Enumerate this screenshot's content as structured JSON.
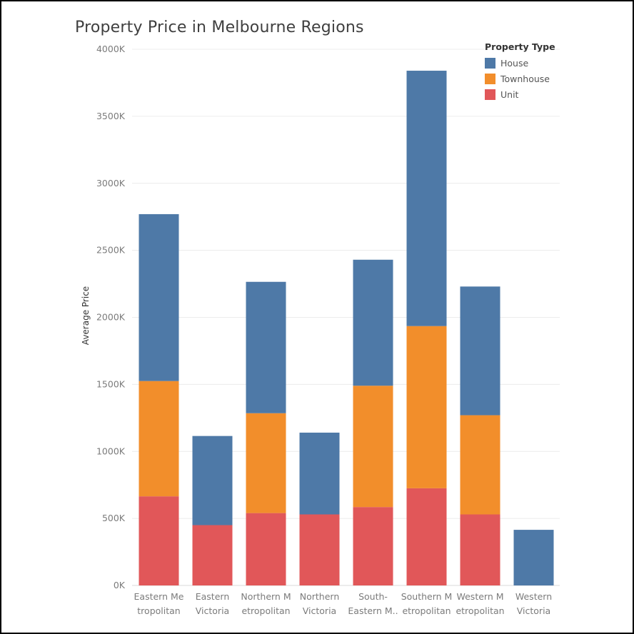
{
  "chart_data": {
    "type": "bar",
    "stacked": true,
    "title": "Property Price in Melbourne Regions",
    "ylabel": "Average Price",
    "ylim": [
      0,
      4000000
    ],
    "yticks": [
      {
        "value": 0,
        "label": "0K"
      },
      {
        "value": 500000,
        "label": "500K"
      },
      {
        "value": 1000000,
        "label": "1000K"
      },
      {
        "value": 1500000,
        "label": "1500K"
      },
      {
        "value": 2000000,
        "label": "2000K"
      },
      {
        "value": 2500000,
        "label": "2500K"
      },
      {
        "value": 3000000,
        "label": "3000K"
      },
      {
        "value": 3500000,
        "label": "3500K"
      },
      {
        "value": 4000000,
        "label": "4000K"
      }
    ],
    "categories": [
      "Eastern Metropolitan",
      "Eastern Victoria",
      "Northern Metropolitan",
      "Northern Victoria",
      "South-Eastern Metropolitan",
      "Southern Metropolitan",
      "Western Metropolitan",
      "Western Victoria"
    ],
    "category_labels": [
      [
        "Eastern Me",
        "tropolitan"
      ],
      [
        "Eastern",
        "Victoria"
      ],
      [
        "Northern M",
        "etropolitan"
      ],
      [
        "Northern",
        "Victoria"
      ],
      [
        "South-",
        "Eastern M.."
      ],
      [
        "Southern M",
        "etropolitan"
      ],
      [
        "Western M",
        "etropolitan"
      ],
      [
        "Western",
        "Victoria"
      ]
    ],
    "series": [
      {
        "name": "Unit",
        "color": "#e15759",
        "values": [
          665000,
          450000,
          540000,
          530000,
          585000,
          725000,
          530000,
          0
        ]
      },
      {
        "name": "Townhouse",
        "color": "#f28e2b",
        "values": [
          860000,
          0,
          745000,
          0,
          905000,
          1210000,
          740000,
          0
        ]
      },
      {
        "name": "House",
        "color": "#4e79a7",
        "values": [
          1245000,
          665000,
          980000,
          610000,
          940000,
          1905000,
          960000,
          415000
        ]
      }
    ],
    "grid": true,
    "legend": {
      "title": "Property Type",
      "position": "top-right",
      "entries": [
        {
          "name": "House",
          "color": "#4e79a7"
        },
        {
          "name": "Townhouse",
          "color": "#f28e2b"
        },
        {
          "name": "Unit",
          "color": "#e15759"
        }
      ]
    }
  }
}
